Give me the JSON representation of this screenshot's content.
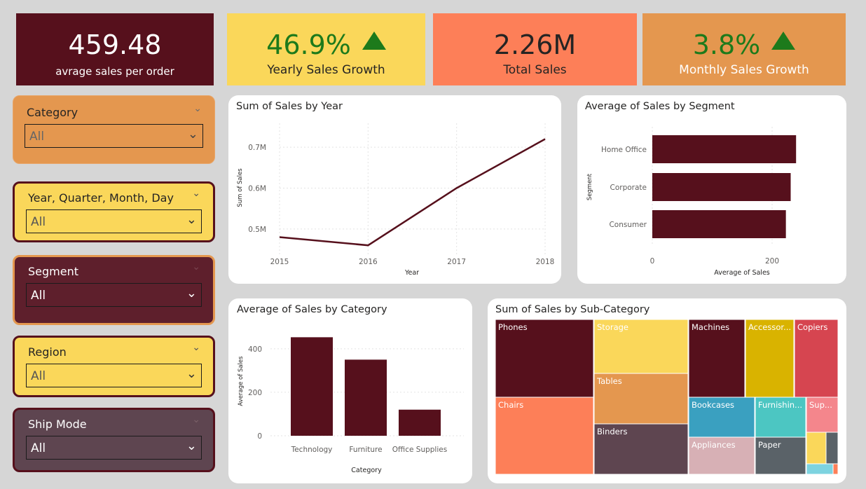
{
  "kpis": {
    "avg_order": {
      "value": "459.48",
      "label": "avrage sales per order"
    },
    "yearly_growth": {
      "value": "46.9%",
      "label": "Yearly Sales Growth"
    },
    "total_sales": {
      "value": "2.26M",
      "label": "Total Sales"
    },
    "monthly_growth": {
      "value": "3.8%",
      "label": "Monthly Sales Growth"
    }
  },
  "slicers": {
    "category": {
      "title": "Category",
      "value": "All"
    },
    "date": {
      "title": "Year, Quarter, Month, Day",
      "value": "All"
    },
    "segment": {
      "title": "Segment",
      "value": "All"
    },
    "region": {
      "title": "Region",
      "value": "All"
    },
    "ship_mode": {
      "title": "Ship Mode",
      "value": "All"
    }
  },
  "colors": {
    "maroon": "#56101c",
    "yellow": "#fad75a",
    "coral": "#fd7f58",
    "orange": "#e4974f",
    "green": "#1d7a1b"
  },
  "chart_data": [
    {
      "id": "sales_by_year",
      "type": "line",
      "title": "Sum of Sales by Year",
      "xlabel": "Year",
      "ylabel": "Sum of Sales",
      "x": [
        "2015",
        "2016",
        "2017",
        "2018"
      ],
      "values": [
        0.48,
        0.46,
        0.6,
        0.72
      ],
      "ylim": [
        0.45,
        0.75
      ],
      "yticks": [
        0.5,
        0.6,
        0.7
      ],
      "yticklabels": [
        "0.5M",
        "0.6M",
        "0.7M"
      ]
    },
    {
      "id": "avg_sales_by_segment",
      "type": "bar",
      "orientation": "horizontal",
      "title": "Average of Sales by Segment",
      "xlabel": "Average of Sales",
      "ylabel": "Segment",
      "categories": [
        "Home Office",
        "Corporate",
        "Consumer"
      ],
      "values": [
        240,
        231,
        223
      ],
      "xlim": [
        0,
        240
      ],
      "xticks": [
        0,
        200
      ],
      "xticklabels": [
        "0",
        "200"
      ]
    },
    {
      "id": "avg_sales_by_category",
      "type": "bar",
      "title": "Average of Sales by Category",
      "xlabel": "Category",
      "ylabel": "Average of Sales",
      "categories": [
        "Technology",
        "Furniture",
        "Office Supplies"
      ],
      "values": [
        453,
        350,
        120
      ],
      "ylim": [
        0,
        480
      ],
      "yticks": [
        0,
        200,
        400
      ],
      "yticklabels": [
        "0",
        "200",
        "400"
      ]
    },
    {
      "id": "sales_by_subcategory",
      "type": "treemap",
      "title": "Sum of Sales by Sub-Category",
      "items": [
        "Phones",
        "Chairs",
        "Storage",
        "Tables",
        "Binders",
        "Machines",
        "Accessor...",
        "Copiers",
        "Bookcases",
        "Furnishin...",
        "Sup...",
        "Appliances",
        "Paper"
      ]
    }
  ]
}
